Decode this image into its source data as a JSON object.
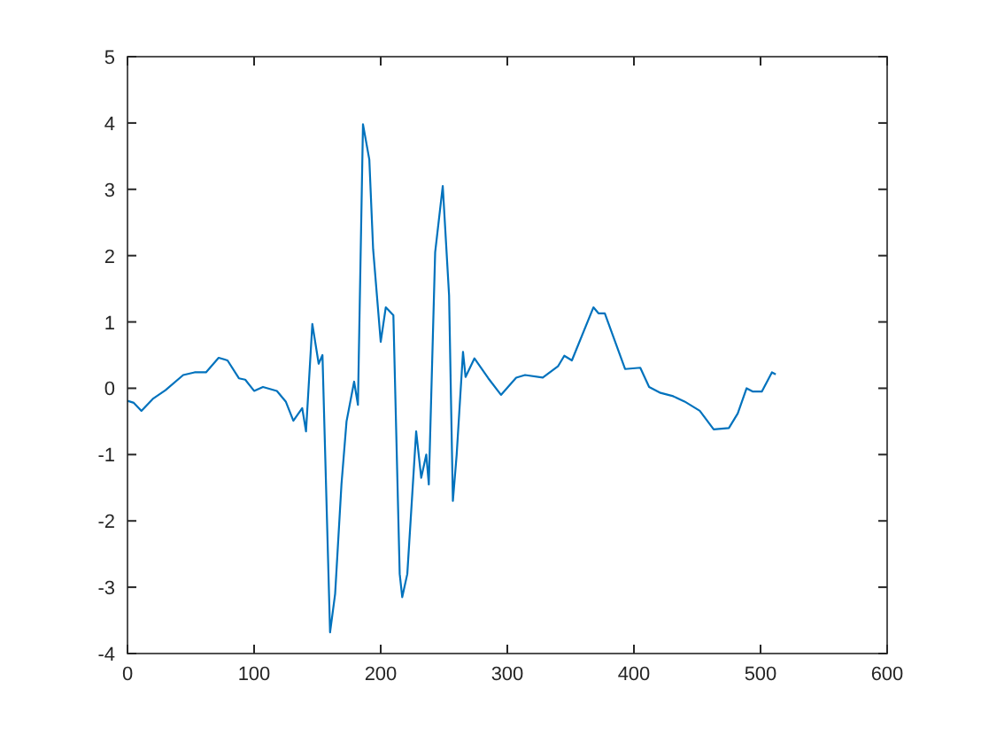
{
  "chart_data": {
    "type": "line",
    "series": [
      {
        "color": "#0072bd",
        "x": [
          0,
          5,
          11,
          20,
          30,
          44,
          53,
          62,
          72,
          79,
          88,
          93,
          100,
          107,
          118,
          125,
          131,
          138,
          141,
          146,
          151,
          154,
          160,
          164,
          169,
          173,
          179,
          182,
          186,
          191,
          194,
          200,
          204,
          210,
          215,
          217,
          221,
          228,
          232,
          236,
          238,
          243,
          249,
          254,
          257,
          260,
          265,
          267,
          274,
          285,
          295,
          307,
          314,
          328,
          340,
          345,
          351,
          368,
          372,
          377,
          393,
          405,
          412,
          421,
          431,
          440,
          452,
          463,
          475,
          482,
          489,
          494,
          501,
          509,
          512
        ],
        "values": [
          -0.19,
          -0.22,
          -0.34,
          -0.16,
          -0.03,
          0.2,
          0.24,
          0.24,
          0.46,
          0.42,
          0.15,
          0.13,
          -0.04,
          0.02,
          -0.04,
          -0.2,
          -0.49,
          -0.3,
          -0.65,
          0.97,
          0.37,
          0.5,
          -3.68,
          -3.1,
          -1.45,
          -0.5,
          0.1,
          -0.25,
          3.98,
          3.45,
          2.1,
          0.7,
          1.22,
          1.1,
          -2.8,
          -3.15,
          -2.8,
          -0.65,
          -1.35,
          -1.0,
          -1.45,
          2.05,
          3.05,
          1.4,
          -1.7,
          -1.0,
          0.55,
          0.17,
          0.45,
          0.15,
          -0.1,
          0.16,
          0.2,
          0.16,
          0.33,
          0.49,
          0.42,
          1.22,
          1.13,
          1.13,
          0.29,
          0.31,
          0.02,
          -0.07,
          -0.12,
          -0.2,
          -0.34,
          -0.62,
          -0.6,
          -0.38,
          0,
          -0.05,
          -0.05,
          0.24,
          0.21
        ]
      }
    ],
    "xlim": [
      0,
      600
    ],
    "xticks": [
      0,
      100,
      200,
      300,
      400,
      500,
      600
    ],
    "ylim": [
      -4,
      5
    ],
    "yticks": [
      -4,
      -3,
      -2,
      -1,
      0,
      1,
      2,
      3,
      4,
      5
    ],
    "grid": false,
    "marker": "none",
    "line_style": "solid"
  }
}
